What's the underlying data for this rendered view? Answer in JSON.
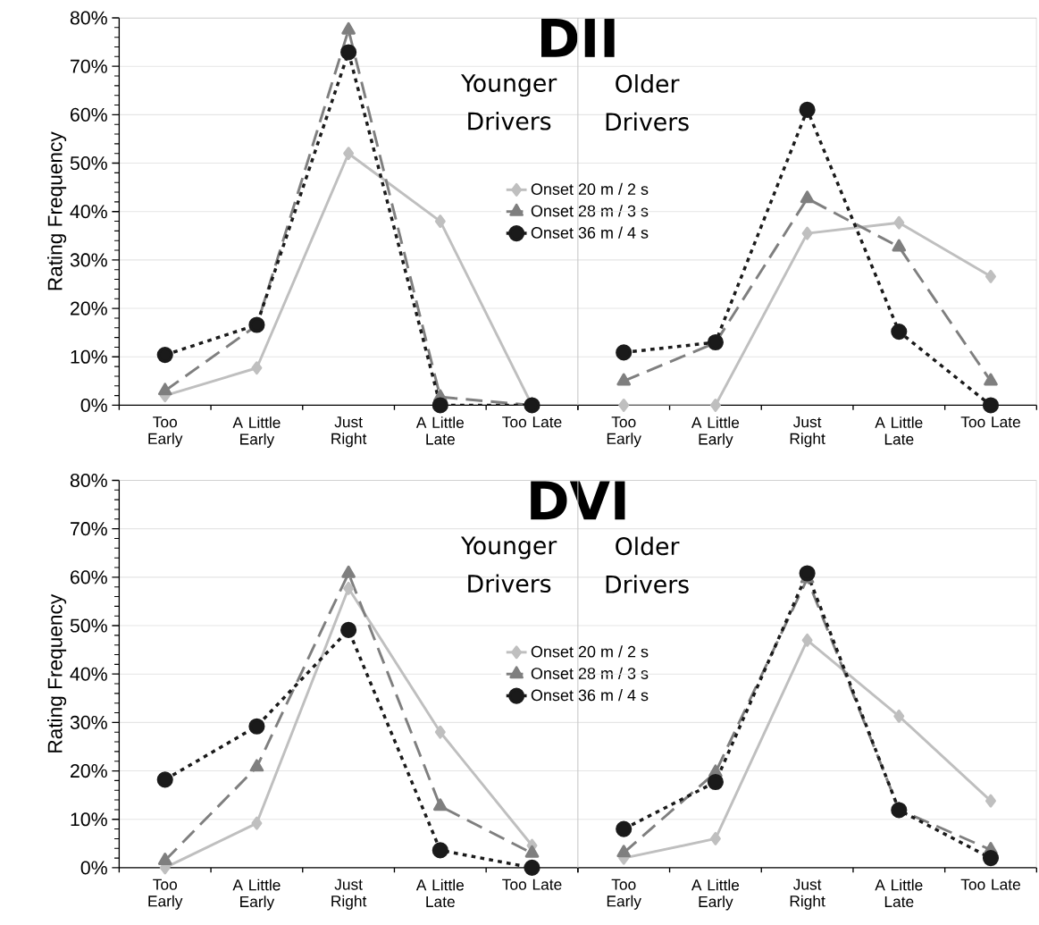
{
  "chart_data": [
    {
      "type": "line",
      "title": "DII",
      "ylabel": "Rating Frequency",
      "categories": [
        "Too Early",
        "A Little Early",
        "Just Right",
        "A Little Late",
        "Too Late"
      ],
      "ylim": [
        0,
        80
      ],
      "yticks": [
        {
          "value": 0,
          "label": "0%"
        },
        {
          "value": 10,
          "label": "10%"
        },
        {
          "value": 20,
          "label": "20%"
        },
        {
          "value": 30,
          "label": "30%"
        },
        {
          "value": 40,
          "label": "40%"
        },
        {
          "value": 50,
          "label": "50%"
        },
        {
          "value": 60,
          "label": "60%"
        },
        {
          "value": 70,
          "label": "70%"
        },
        {
          "value": 80,
          "label": "80%"
        }
      ],
      "grid": "y",
      "legend": "right",
      "annotations": [
        "Younger Drivers"
      ],
      "series": [
        {
          "name": "Onset 20 m / 2 s",
          "color": "#bfbfbf",
          "marker": "diamond",
          "line_style": "solid",
          "values": [
            2,
            7.7,
            52,
            38,
            0
          ]
        },
        {
          "name": "Onset 28 m / 3 s",
          "color": "#7f7f7f",
          "marker": "triangle",
          "line_style": "dashed",
          "values": [
            3,
            16.5,
            77.5,
            1.7,
            0
          ]
        },
        {
          "name": "Onset 36 m / 4 s",
          "color": "#1a1a1a",
          "marker": "circle",
          "line_style": "dotted",
          "values": [
            10.4,
            16.6,
            72.9,
            0,
            0
          ]
        }
      ]
    },
    {
      "type": "line",
      "categories": [
        "Too Early",
        "A Little Early",
        "Just Right",
        "A Little Late",
        "Too Late"
      ],
      "ylim": [
        0,
        80
      ],
      "yticks": [
        {
          "value": 0,
          "label": null
        },
        {
          "value": 10,
          "label": null
        },
        {
          "value": 20,
          "label": null
        },
        {
          "value": 30,
          "label": null
        },
        {
          "value": 40,
          "label": null
        },
        {
          "value": 50,
          "label": null
        },
        {
          "value": 60,
          "label": null
        },
        {
          "value": 70,
          "label": null
        },
        {
          "value": 80,
          "label": null
        }
      ],
      "tick_labels": "x",
      "grid": "y",
      "annotations": [
        "Older Drivers"
      ],
      "series": [
        {
          "color": "#bfbfbf",
          "marker": "diamond",
          "line_style": "solid",
          "values": [
            0,
            0,
            35.5,
            37.7,
            26.6
          ]
        },
        {
          "color": "#7f7f7f",
          "marker": "triangle",
          "line_style": "dashed",
          "values": [
            5,
            12.9,
            42.7,
            32.7,
            5
          ]
        },
        {
          "color": "#1a1a1a",
          "marker": "circle",
          "line_style": "dotted",
          "values": [
            10.9,
            13,
            61,
            15.2,
            0
          ]
        }
      ]
    },
    {
      "type": "line",
      "title": "DVI",
      "ylabel": "Rating Frequency",
      "categories": [
        "Too Early",
        "A Little Early",
        "Just Right",
        "A Little Late",
        "Too Late"
      ],
      "ylim": [
        0,
        80
      ],
      "yticks": [
        {
          "value": 0,
          "label": "0%"
        },
        {
          "value": 10,
          "label": "10%"
        },
        {
          "value": 20,
          "label": "20%"
        },
        {
          "value": 30,
          "label": "30%"
        },
        {
          "value": 40,
          "label": "40%"
        },
        {
          "value": 50,
          "label": "50%"
        },
        {
          "value": 60,
          "label": "60%"
        },
        {
          "value": 70,
          "label": "70%"
        },
        {
          "value": 80,
          "label": "80%"
        }
      ],
      "grid": "y",
      "legend": "right",
      "annotations": [
        "Younger Drivers"
      ],
      "series": [
        {
          "name": "Onset 20 m / 2 s",
          "color": "#bfbfbf",
          "marker": "diamond",
          "line_style": "solid",
          "values": [
            0,
            9.2,
            57.7,
            28,
            4.6
          ]
        },
        {
          "name": "Onset 28 m / 3 s",
          "color": "#7f7f7f",
          "marker": "triangle",
          "line_style": "dashed",
          "values": [
            1.5,
            20.8,
            60.8,
            12.7,
            3
          ]
        },
        {
          "name": "Onset 36 m / 4 s",
          "color": "#1a1a1a",
          "marker": "circle",
          "line_style": "dotted",
          "values": [
            18.2,
            29.2,
            49.1,
            3.6,
            0
          ]
        }
      ]
    },
    {
      "type": "line",
      "categories": [
        "Too Early",
        "A Little Early",
        "Just Right",
        "A Little Late",
        "Too Late"
      ],
      "ylim": [
        0,
        80
      ],
      "yticks": [
        {
          "value": 0,
          "label": null
        },
        {
          "value": 10,
          "label": null
        },
        {
          "value": 20,
          "label": null
        },
        {
          "value": 30,
          "label": null
        },
        {
          "value": 40,
          "label": null
        },
        {
          "value": 50,
          "label": null
        },
        {
          "value": 60,
          "label": null
        },
        {
          "value": 70,
          "label": null
        },
        {
          "value": 80,
          "label": null
        }
      ],
      "tick_labels": "x",
      "grid": "y",
      "annotations": [
        "Older Drivers"
      ],
      "series": [
        {
          "color": "#bfbfbf",
          "marker": "diamond",
          "line_style": "solid",
          "values": [
            2,
            6,
            47,
            31.3,
            13.8
          ]
        },
        {
          "color": "#7f7f7f",
          "marker": "triangle",
          "line_style": "dashed",
          "values": [
            3.1,
            19.7,
            59.7,
            12,
            3.7
          ]
        },
        {
          "color": "#1a1a1a",
          "marker": "circle",
          "line_style": "dotted",
          "values": [
            8,
            17.7,
            60.8,
            11.9,
            2
          ]
        }
      ]
    }
  ]
}
